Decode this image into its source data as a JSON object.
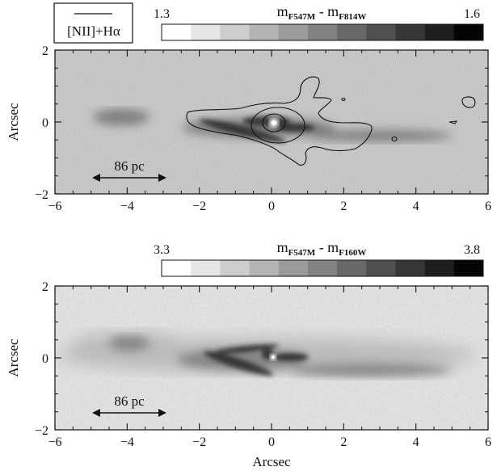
{
  "panels": [
    {
      "id": "top",
      "legend_label": "[NII]+Hα",
      "colorbar": {
        "title_main": "m",
        "title_sub1": "F547M",
        "title_sep": " - m",
        "title_sub2": "F814W",
        "min_label": "1.3",
        "max_label": "1.6"
      },
      "ylabel": "Arcsec",
      "xticks": [
        "−6",
        "−4",
        "−2",
        "0",
        "2",
        "4",
        "6"
      ],
      "yticks": [
        "2",
        "0",
        "−2"
      ],
      "scalebar_label": "86 pc"
    },
    {
      "id": "bottom",
      "colorbar": {
        "title_main": "m",
        "title_sub1": "F547M",
        "title_sep": " - m",
        "title_sub2": "F160W",
        "min_label": "3.3",
        "max_label": "3.8"
      },
      "ylabel": "Arcsec",
      "xlabel": "Arcsec",
      "xticks": [
        "−6",
        "−4",
        "−2",
        "0",
        "2",
        "4",
        "6"
      ],
      "yticks": [
        "2",
        "0",
        "−2"
      ],
      "scalebar_label": "86 pc"
    }
  ],
  "chart_data": [
    {
      "type": "heatmap",
      "title": "m_F547M - m_F814W",
      "ylabel": "Arcsec",
      "xlim": [
        -6,
        6
      ],
      "ylim": [
        -2,
        2
      ],
      "x_ticks": [
        -6,
        -4,
        -2,
        0,
        2,
        4,
        6
      ],
      "y_ticks": [
        -2,
        0,
        2
      ],
      "colorbar_range": [
        1.3,
        1.6
      ],
      "colorbar_steps": 11,
      "colormap": "grayscale (white = low, black = high)",
      "overlay": "[NII]+Hα contours",
      "scalebar": {
        "label": "86 pc",
        "x_range": [
          -5,
          -3
        ],
        "y": -1.55
      }
    },
    {
      "type": "heatmap",
      "title": "m_F547M - m_F160W",
      "xlabel": "Arcsec",
      "ylabel": "Arcsec",
      "xlim": [
        -6,
        6
      ],
      "ylim": [
        -2,
        2
      ],
      "x_ticks": [
        -6,
        -4,
        -2,
        0,
        2,
        4,
        6
      ],
      "y_ticks": [
        -2,
        0,
        2
      ],
      "colorbar_range": [
        3.3,
        3.8
      ],
      "colorbar_steps": 11,
      "colormap": "grayscale (white = low, black = high)",
      "scalebar": {
        "label": "86 pc",
        "x_range": [
          -5,
          -3
        ],
        "y": -1.5
      }
    }
  ]
}
